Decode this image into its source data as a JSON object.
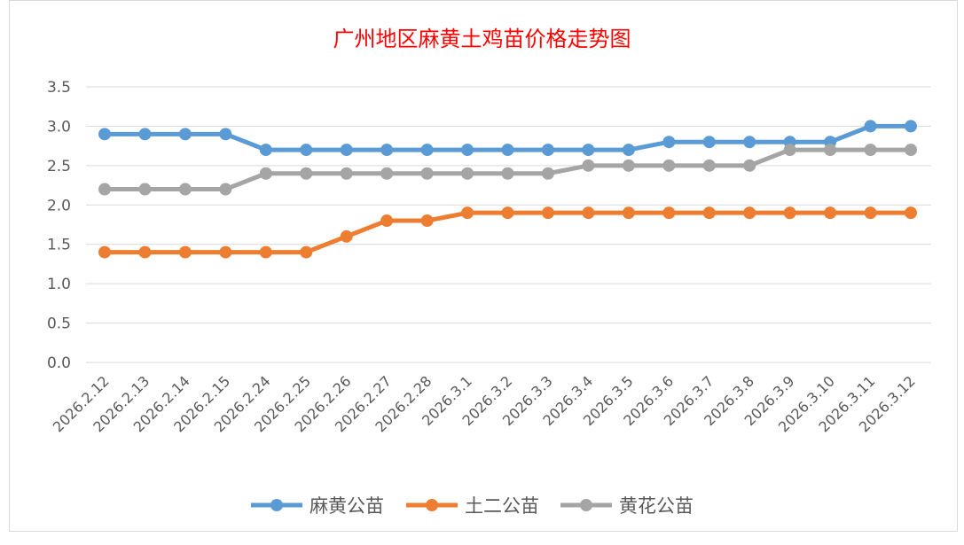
{
  "chart_data": {
    "type": "line",
    "title": "广州地区麻黄土鸡苗价格走势图",
    "categories": [
      "2026.2.12",
      "2026.2.13",
      "2026.2.14",
      "2026.2.15",
      "2026.2.24",
      "2026.2.25",
      "2026.2.26",
      "2026.2.27",
      "2026.2.28",
      "2026.3.1",
      "2026.3.2",
      "2026.3.3",
      "2026.3.4",
      "2026.3.5",
      "2026.3.6",
      "2026.3.7",
      "2026.3.8",
      "2026.3.9",
      "2026.3.10",
      "2026.3.11",
      "2026.3.12"
    ],
    "series": [
      {
        "name": "麻黄公苗",
        "color": "#5b9bd5",
        "values": [
          2.9,
          2.9,
          2.9,
          2.9,
          2.7,
          2.7,
          2.7,
          2.7,
          2.7,
          2.7,
          2.7,
          2.7,
          2.7,
          2.7,
          2.8,
          2.8,
          2.8,
          2.8,
          2.8,
          3.0,
          3.0
        ]
      },
      {
        "name": "土二公苗",
        "color": "#ed7d31",
        "values": [
          1.4,
          1.4,
          1.4,
          1.4,
          1.4,
          1.4,
          1.6,
          1.8,
          1.8,
          1.9,
          1.9,
          1.9,
          1.9,
          1.9,
          1.9,
          1.9,
          1.9,
          1.9,
          1.9,
          1.9,
          1.9
        ]
      },
      {
        "name": "黄花公苗",
        "color": "#a5a5a5",
        "values": [
          2.2,
          2.2,
          2.2,
          2.2,
          2.4,
          2.4,
          2.4,
          2.4,
          2.4,
          2.4,
          2.4,
          2.4,
          2.5,
          2.5,
          2.5,
          2.5,
          2.5,
          2.7,
          2.7,
          2.7,
          2.7
        ]
      }
    ],
    "yticks": [
      "0.0",
      "0.5",
      "1.0",
      "1.5",
      "2.0",
      "2.5",
      "3.0",
      "3.5"
    ],
    "ylim": [
      0,
      3.5
    ],
    "grid": true,
    "legend": "bottom",
    "title_color": "#ff0000"
  }
}
